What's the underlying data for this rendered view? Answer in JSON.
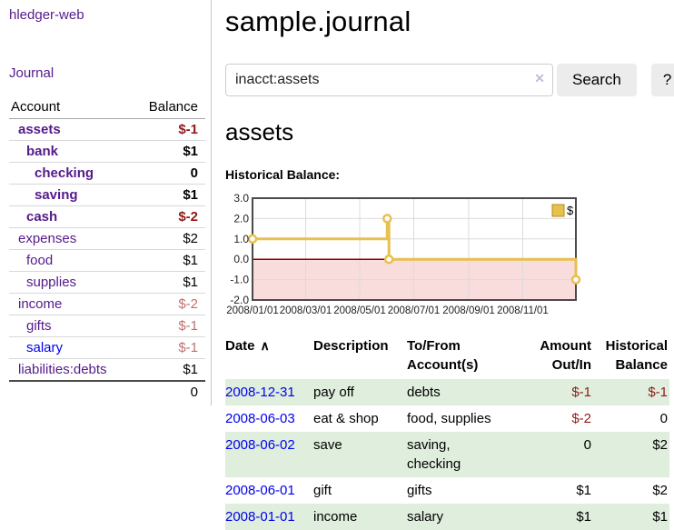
{
  "sidebar": {
    "brand": "hledger-web",
    "nav": {
      "journal": "Journal"
    },
    "table": {
      "account_header": "Account",
      "balance_header": "Balance",
      "rows": [
        {
          "account": "assets",
          "depth": 1,
          "balance": "$-1",
          "active": true,
          "balance_tone": "negative"
        },
        {
          "account": "bank",
          "depth": 2,
          "balance": "$1",
          "active": true,
          "balance_tone": "plain"
        },
        {
          "account": "checking",
          "depth": 3,
          "balance": "0",
          "active": true,
          "balance_tone": "plain"
        },
        {
          "account": "saving",
          "depth": 3,
          "balance": "$1",
          "active": true,
          "balance_tone": "plain"
        },
        {
          "account": "cash",
          "depth": 2,
          "balance": "$-2",
          "active": true,
          "balance_tone": "negative"
        },
        {
          "account": "expenses",
          "depth": 1,
          "balance": "$2",
          "active": false,
          "balance_tone": "plain"
        },
        {
          "account": "food",
          "depth": 2,
          "balance": "$1",
          "active": false,
          "balance_tone": "plain"
        },
        {
          "account": "supplies",
          "depth": 2,
          "balance": "$1",
          "active": false,
          "balance_tone": "plain"
        },
        {
          "account": "income",
          "depth": 1,
          "balance": "$-2",
          "active": false,
          "balance_tone": "negative-dim"
        },
        {
          "account": "gifts",
          "depth": 2,
          "balance": "$-1",
          "active": false,
          "balance_tone": "negative-dim"
        },
        {
          "account": "salary",
          "depth": 2,
          "balance": "$-1",
          "active": false,
          "balance_tone": "negative-dim",
          "link_tone": "unvisited"
        },
        {
          "account": "liabilities:debts",
          "depth": 1,
          "balance": "$1",
          "active": false,
          "balance_tone": "plain"
        }
      ],
      "total": "0"
    }
  },
  "main": {
    "title": "sample.journal",
    "search": {
      "value": "inacct:assets",
      "button_label": "Search",
      "help_label": "?"
    },
    "account_heading": "assets",
    "register": {
      "columns": [
        {
          "lines": [
            "Date"
          ],
          "align": "left",
          "sort": "ascending"
        },
        {
          "lines": [
            "Description"
          ],
          "align": "left"
        },
        {
          "lines": [
            "To/From",
            "Account(s)"
          ],
          "align": "left"
        },
        {
          "lines": [
            "Amount",
            "Out/In"
          ],
          "align": "right"
        },
        {
          "lines": [
            "Historical",
            "Balance"
          ],
          "align": "right"
        }
      ],
      "rows": [
        {
          "date": "2008-12-31",
          "description": "pay off",
          "accounts": "debts",
          "amount": "$-1",
          "balance": "$-1"
        },
        {
          "date": "2008-06-03",
          "description": "eat & shop",
          "accounts": "food, supplies",
          "amount": "$-2",
          "balance": "0"
        },
        {
          "date": "2008-06-02",
          "description": "save",
          "accounts": "saving,\nchecking",
          "amount": "0",
          "balance": "$2"
        },
        {
          "date": "2008-06-01",
          "description": "gift",
          "accounts": "gifts",
          "amount": "$1",
          "balance": "$2"
        },
        {
          "date": "2008-01-01",
          "description": "income",
          "accounts": "salary",
          "amount": "$1",
          "balance": "$1"
        }
      ]
    }
  },
  "icons": {
    "clear_search": "✕",
    "sort_ascending": "∧",
    "legend_swatch": "gold-square"
  },
  "colors": {
    "link_purple": "#551a8b",
    "link_blue": "#0000ee",
    "negative": "#8f1a1a",
    "negative_dim": "#c07070",
    "row_green": "#dfeedd",
    "chart_line": "#e8c04e",
    "chart_negative_bg": "#f9dcdc",
    "zero_line": "#8b0000",
    "button_bg": "#ececec"
  },
  "chart_data": {
    "type": "line",
    "step": true,
    "title": "Historical Balance:",
    "series": [
      {
        "name": "$",
        "color": "#e8c04e",
        "points": [
          [
            "2008-01-01",
            1
          ],
          [
            "2008-06-01",
            2
          ],
          [
            "2008-06-03",
            0
          ],
          [
            "2008-12-31",
            -1
          ]
        ]
      }
    ],
    "x_range": [
      "2008-01-01",
      "2008-12-31"
    ],
    "x_ticks": [
      "2008/01/01",
      "2008/03/01",
      "2008/05/01",
      "2008/07/01",
      "2008/09/01",
      "2008/11/01"
    ],
    "y_ticks": [
      3.0,
      2.0,
      1.0,
      0.0,
      -1.0,
      -2.0
    ],
    "ylim": [
      -2,
      3
    ],
    "grid": true,
    "legend": {
      "label": "$",
      "position": "top-right"
    },
    "negative_region_shaded": true
  }
}
